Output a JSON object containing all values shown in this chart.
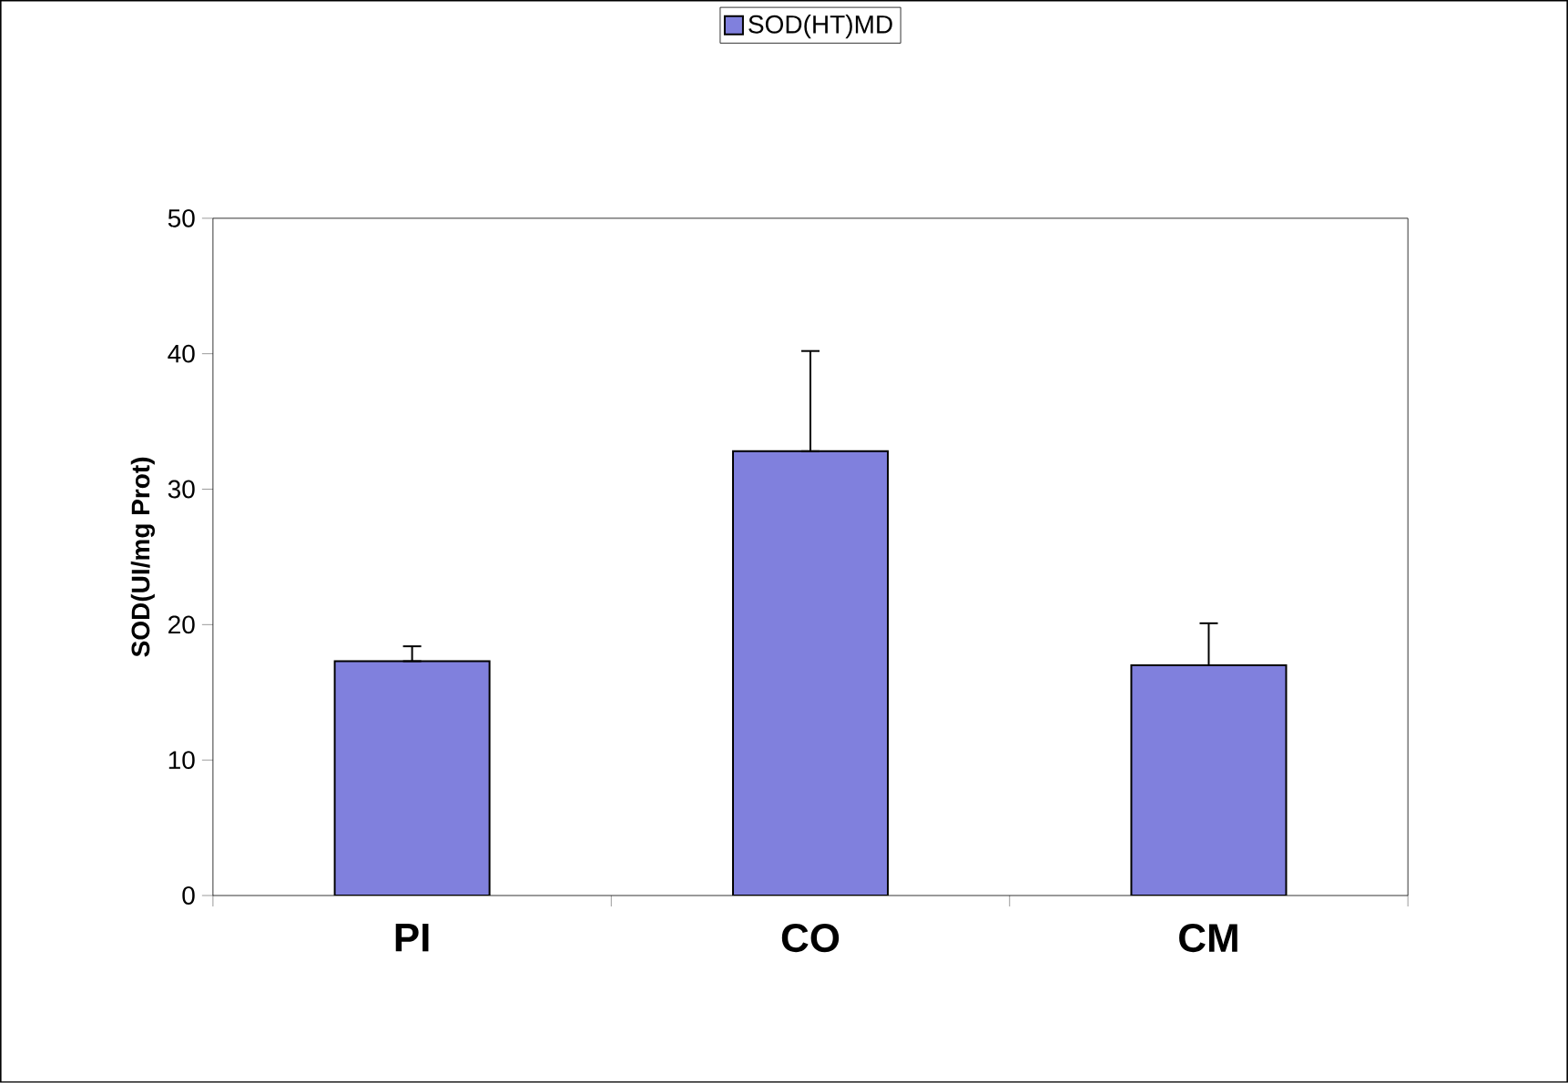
{
  "chart_data": {
    "type": "bar",
    "ylabel": "SOD(UI/mg Prot)",
    "categories": [
      "PI",
      "CO",
      "CM"
    ],
    "series": [
      {
        "name": "SOD(HT)MD",
        "color": "#8080dd",
        "values": [
          17.3,
          32.8,
          17.0
        ],
        "errors": [
          [
            17.3,
            18.4
          ],
          [
            32.8,
            40.2
          ],
          [
            17.0,
            20.1
          ]
        ]
      }
    ],
    "ylim": [
      0,
      50
    ],
    "yticks": [
      0,
      10,
      20,
      30,
      40,
      50
    ],
    "grid": false,
    "legend": "top"
  }
}
